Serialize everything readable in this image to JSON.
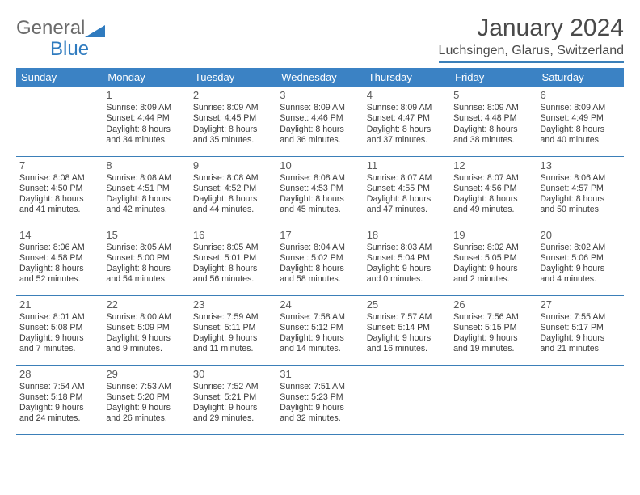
{
  "logo": {
    "word1": "General",
    "word2": "Blue"
  },
  "title": "January 2024",
  "location": "Luchsingen, Glarus, Switzerland",
  "header_bg": "#3b82c4",
  "border_color": "#3b7fb8",
  "days": [
    "Sunday",
    "Monday",
    "Tuesday",
    "Wednesday",
    "Thursday",
    "Friday",
    "Saturday"
  ],
  "weeks": [
    [
      null,
      {
        "n": "1",
        "sr": "8:09 AM",
        "ss": "4:44 PM",
        "dl": "8 hours and 34 minutes."
      },
      {
        "n": "2",
        "sr": "8:09 AM",
        "ss": "4:45 PM",
        "dl": "8 hours and 35 minutes."
      },
      {
        "n": "3",
        "sr": "8:09 AM",
        "ss": "4:46 PM",
        "dl": "8 hours and 36 minutes."
      },
      {
        "n": "4",
        "sr": "8:09 AM",
        "ss": "4:47 PM",
        "dl": "8 hours and 37 minutes."
      },
      {
        "n": "5",
        "sr": "8:09 AM",
        "ss": "4:48 PM",
        "dl": "8 hours and 38 minutes."
      },
      {
        "n": "6",
        "sr": "8:09 AM",
        "ss": "4:49 PM",
        "dl": "8 hours and 40 minutes."
      }
    ],
    [
      {
        "n": "7",
        "sr": "8:08 AM",
        "ss": "4:50 PM",
        "dl": "8 hours and 41 minutes."
      },
      {
        "n": "8",
        "sr": "8:08 AM",
        "ss": "4:51 PM",
        "dl": "8 hours and 42 minutes."
      },
      {
        "n": "9",
        "sr": "8:08 AM",
        "ss": "4:52 PM",
        "dl": "8 hours and 44 minutes."
      },
      {
        "n": "10",
        "sr": "8:08 AM",
        "ss": "4:53 PM",
        "dl": "8 hours and 45 minutes."
      },
      {
        "n": "11",
        "sr": "8:07 AM",
        "ss": "4:55 PM",
        "dl": "8 hours and 47 minutes."
      },
      {
        "n": "12",
        "sr": "8:07 AM",
        "ss": "4:56 PM",
        "dl": "8 hours and 49 minutes."
      },
      {
        "n": "13",
        "sr": "8:06 AM",
        "ss": "4:57 PM",
        "dl": "8 hours and 50 minutes."
      }
    ],
    [
      {
        "n": "14",
        "sr": "8:06 AM",
        "ss": "4:58 PM",
        "dl": "8 hours and 52 minutes."
      },
      {
        "n": "15",
        "sr": "8:05 AM",
        "ss": "5:00 PM",
        "dl": "8 hours and 54 minutes."
      },
      {
        "n": "16",
        "sr": "8:05 AM",
        "ss": "5:01 PM",
        "dl": "8 hours and 56 minutes."
      },
      {
        "n": "17",
        "sr": "8:04 AM",
        "ss": "5:02 PM",
        "dl": "8 hours and 58 minutes."
      },
      {
        "n": "18",
        "sr": "8:03 AM",
        "ss": "5:04 PM",
        "dl": "9 hours and 0 minutes."
      },
      {
        "n": "19",
        "sr": "8:02 AM",
        "ss": "5:05 PM",
        "dl": "9 hours and 2 minutes."
      },
      {
        "n": "20",
        "sr": "8:02 AM",
        "ss": "5:06 PM",
        "dl": "9 hours and 4 minutes."
      }
    ],
    [
      {
        "n": "21",
        "sr": "8:01 AM",
        "ss": "5:08 PM",
        "dl": "9 hours and 7 minutes."
      },
      {
        "n": "22",
        "sr": "8:00 AM",
        "ss": "5:09 PM",
        "dl": "9 hours and 9 minutes."
      },
      {
        "n": "23",
        "sr": "7:59 AM",
        "ss": "5:11 PM",
        "dl": "9 hours and 11 minutes."
      },
      {
        "n": "24",
        "sr": "7:58 AM",
        "ss": "5:12 PM",
        "dl": "9 hours and 14 minutes."
      },
      {
        "n": "25",
        "sr": "7:57 AM",
        "ss": "5:14 PM",
        "dl": "9 hours and 16 minutes."
      },
      {
        "n": "26",
        "sr": "7:56 AM",
        "ss": "5:15 PM",
        "dl": "9 hours and 19 minutes."
      },
      {
        "n": "27",
        "sr": "7:55 AM",
        "ss": "5:17 PM",
        "dl": "9 hours and 21 minutes."
      }
    ],
    [
      {
        "n": "28",
        "sr": "7:54 AM",
        "ss": "5:18 PM",
        "dl": "9 hours and 24 minutes."
      },
      {
        "n": "29",
        "sr": "7:53 AM",
        "ss": "5:20 PM",
        "dl": "9 hours and 26 minutes."
      },
      {
        "n": "30",
        "sr": "7:52 AM",
        "ss": "5:21 PM",
        "dl": "9 hours and 29 minutes."
      },
      {
        "n": "31",
        "sr": "7:51 AM",
        "ss": "5:23 PM",
        "dl": "9 hours and 32 minutes."
      },
      null,
      null,
      null
    ]
  ],
  "labels": {
    "sunrise": "Sunrise:",
    "sunset": "Sunset:",
    "daylight": "Daylight:"
  }
}
